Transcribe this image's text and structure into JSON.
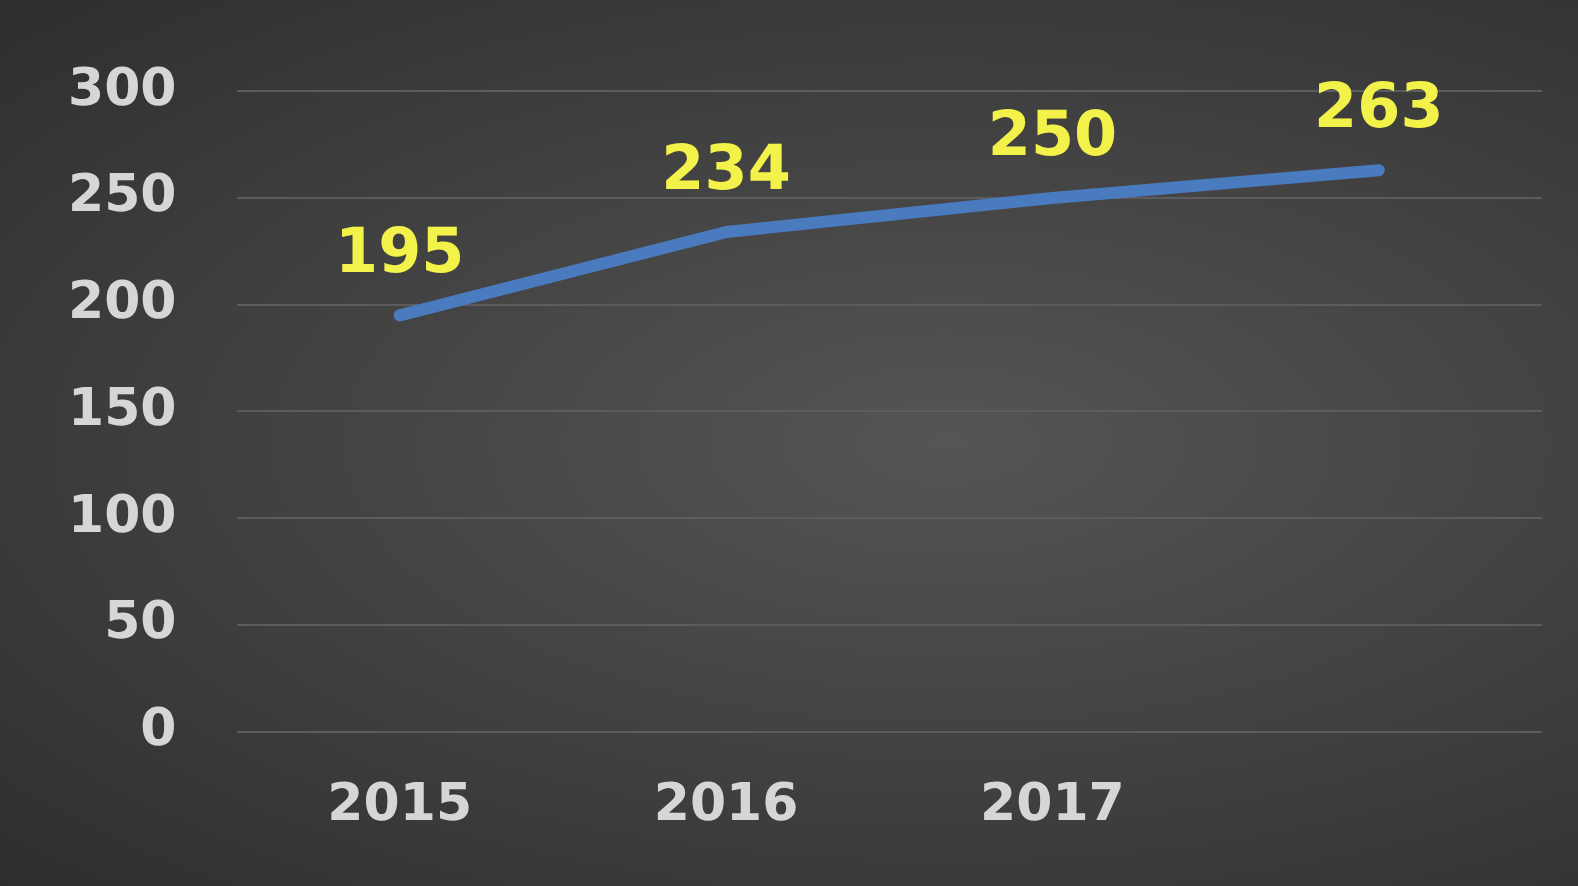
{
  "chart_data": {
    "type": "line",
    "categories": [
      "2015",
      "2016",
      "2017",
      null
    ],
    "series": [
      {
        "color": "#4a7bbf",
        "values": [
          195,
          234,
          250,
          263
        ]
      }
    ],
    "ylim": [
      0,
      300
    ],
    "yticks": [
      0,
      50,
      100,
      150,
      200,
      250,
      300
    ],
    "grid": "y",
    "legend": false,
    "marker": "none",
    "line_style": "solid",
    "data_labels": true
  }
}
